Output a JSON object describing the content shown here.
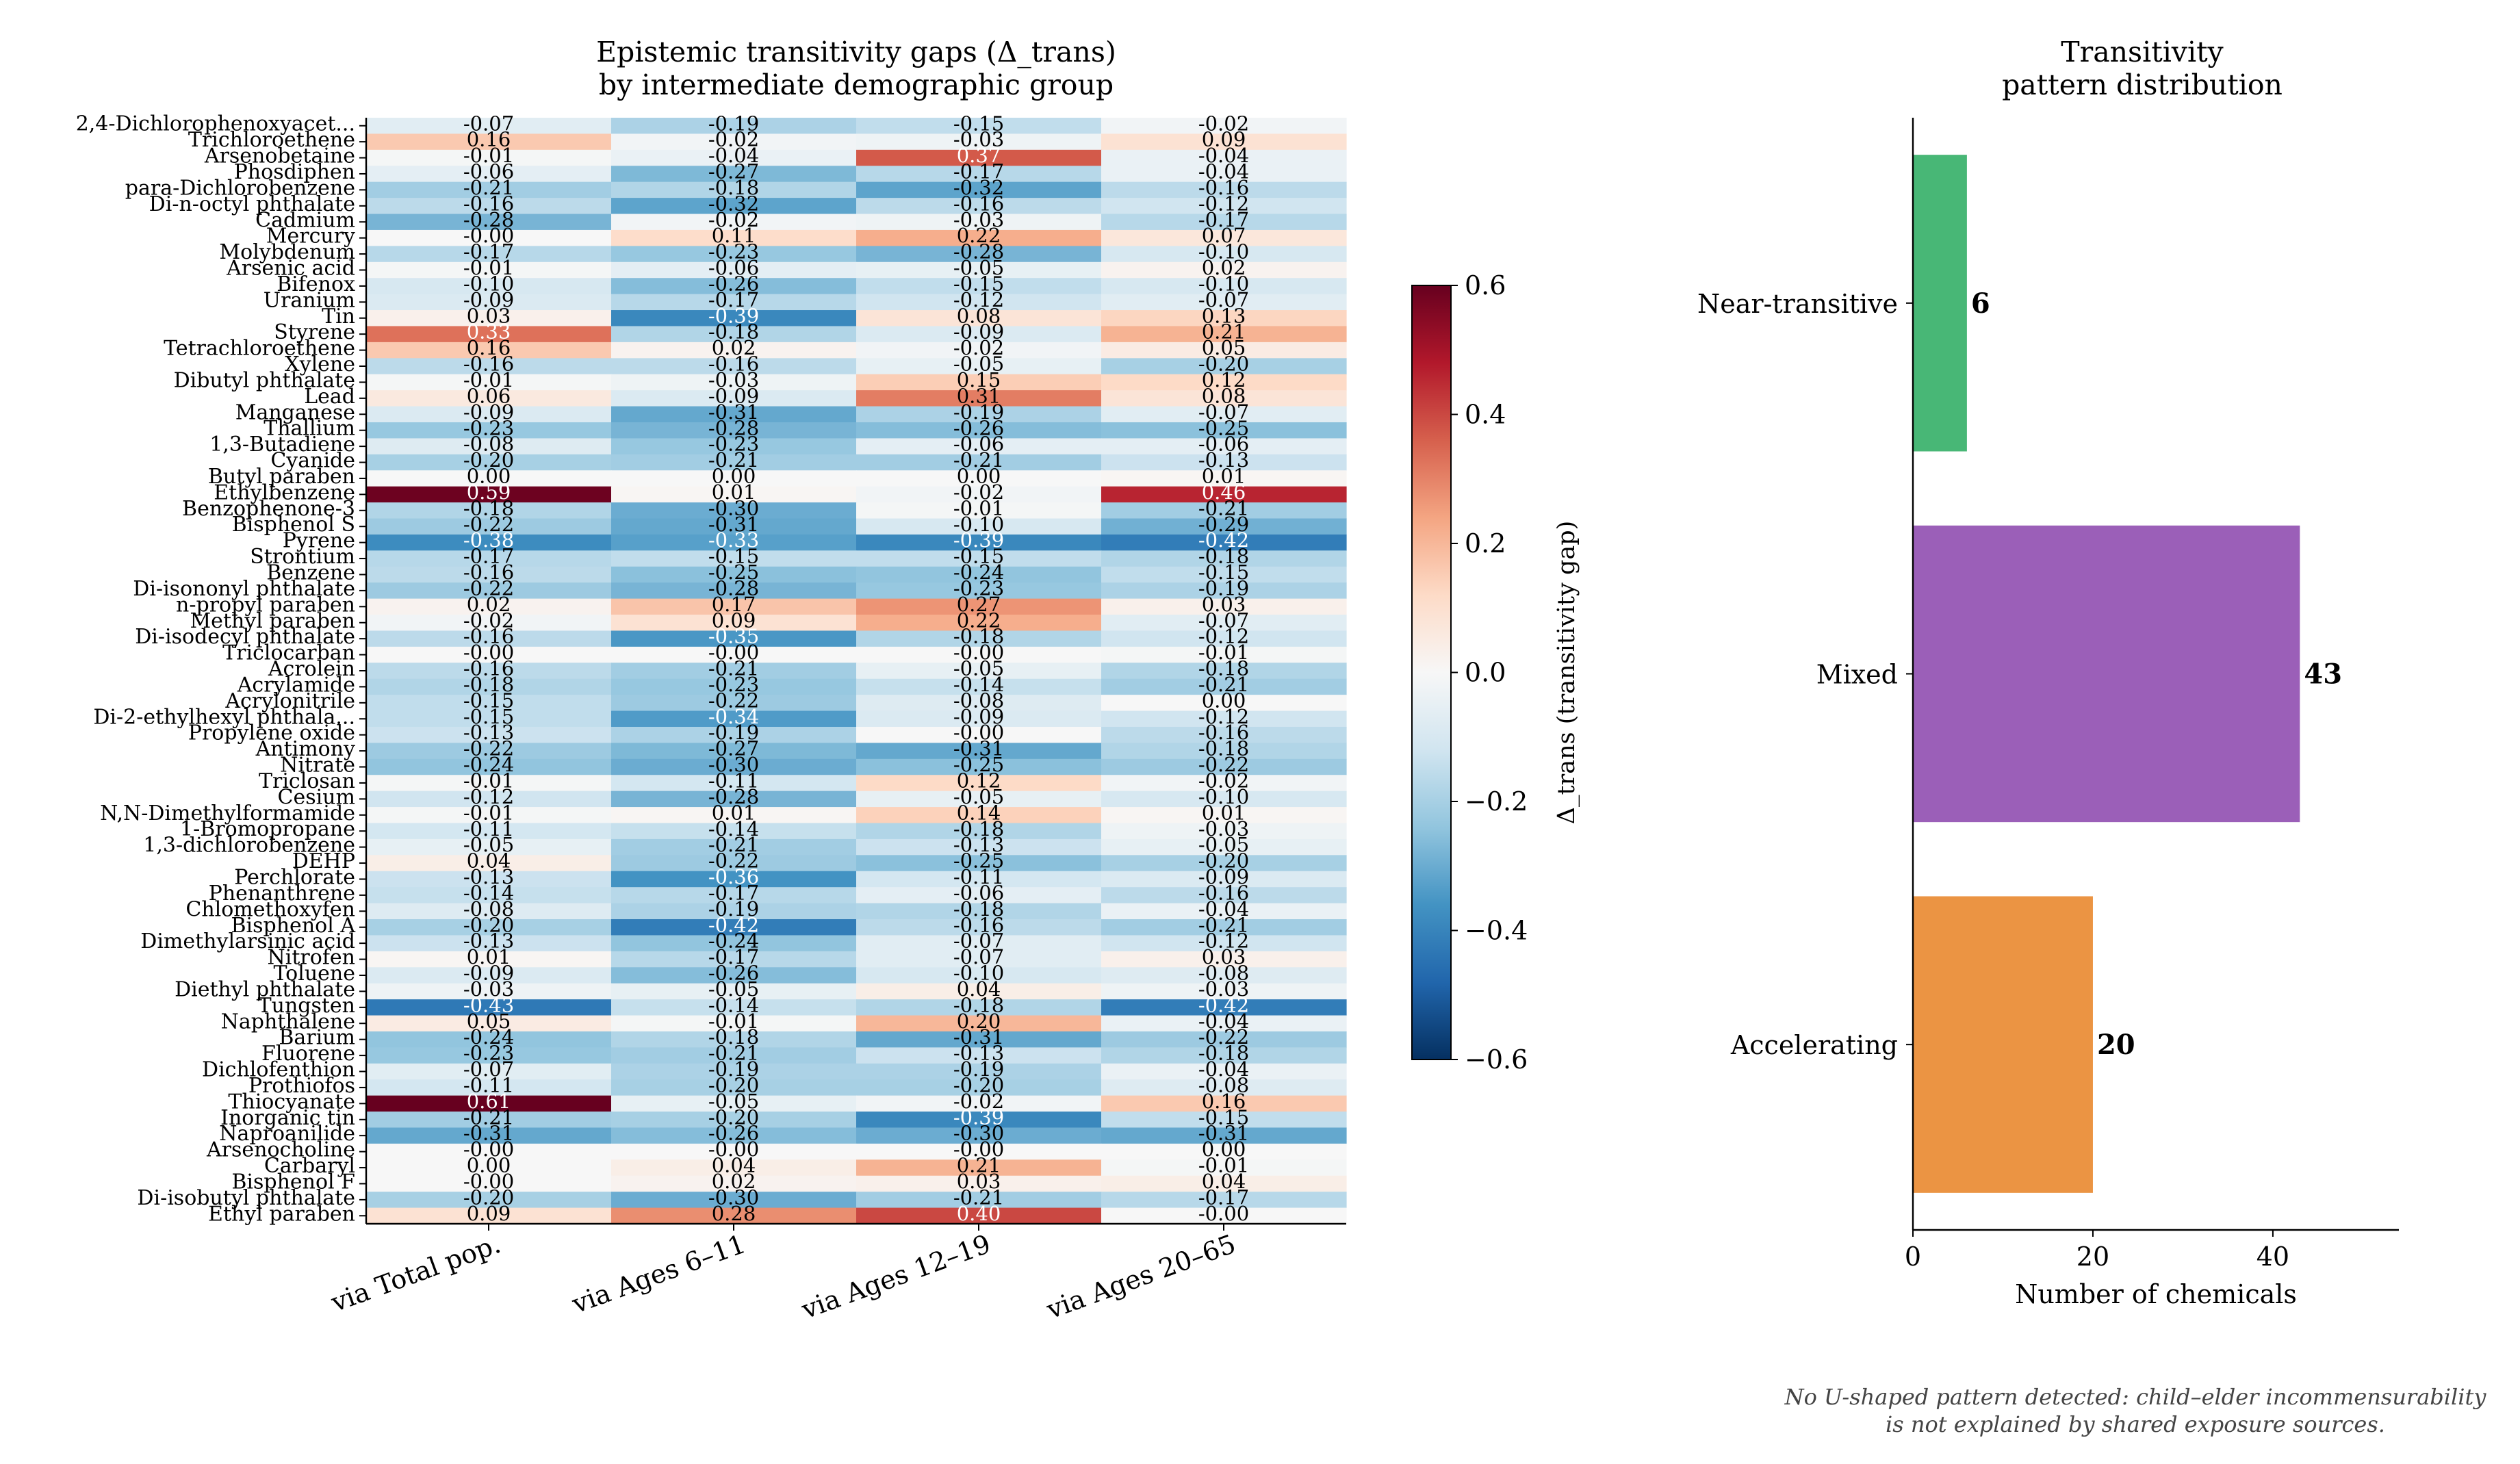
{
  "chart_data": [
    {
      "type": "heatmap",
      "title": "Epistemic transitivity gaps (Δ_trans)\nby intermediate demographic group",
      "columns": [
        "via Total pop.",
        "via Ages 6–11",
        "via Ages 12–19",
        "via Ages 20–65"
      ],
      "rows": [
        {
          "label": "2,4-Dichlorophenoxyacet...",
          "values": [
            -0.07,
            -0.19,
            -0.15,
            -0.02
          ]
        },
        {
          "label": "Trichloroethene",
          "values": [
            0.16,
            -0.02,
            -0.03,
            0.09
          ]
        },
        {
          "label": "Arsenobetaine",
          "values": [
            -0.01,
            -0.04,
            0.37,
            -0.04
          ]
        },
        {
          "label": "Phosdiphen",
          "values": [
            -0.06,
            -0.27,
            -0.17,
            -0.04
          ]
        },
        {
          "label": "para-Dichlorobenzene",
          "values": [
            -0.21,
            -0.18,
            -0.32,
            -0.16
          ]
        },
        {
          "label": "Di-n-octyl phthalate",
          "values": [
            -0.16,
            -0.32,
            -0.16,
            -0.12
          ]
        },
        {
          "label": "Cadmium",
          "values": [
            -0.28,
            -0.02,
            -0.03,
            -0.17
          ]
        },
        {
          "label": "Mercury",
          "values": [
            -0.0,
            0.11,
            0.22,
            0.07
          ]
        },
        {
          "label": "Molybdenum",
          "values": [
            -0.17,
            -0.23,
            -0.28,
            -0.1
          ]
        },
        {
          "label": "Arsenic acid",
          "values": [
            -0.01,
            -0.06,
            -0.05,
            0.02
          ]
        },
        {
          "label": "Bifenox",
          "values": [
            -0.1,
            -0.26,
            -0.15,
            -0.1
          ]
        },
        {
          "label": "Uranium",
          "values": [
            -0.09,
            -0.17,
            -0.12,
            -0.07
          ]
        },
        {
          "label": "Tin",
          "values": [
            0.03,
            -0.39,
            0.08,
            0.13
          ]
        },
        {
          "label": "Styrene",
          "values": [
            0.33,
            -0.18,
            -0.09,
            0.21
          ]
        },
        {
          "label": "Tetrachloroethene",
          "values": [
            0.16,
            0.02,
            -0.02,
            0.05
          ]
        },
        {
          "label": "Xylene",
          "values": [
            -0.16,
            -0.16,
            -0.05,
            -0.2
          ]
        },
        {
          "label": "Dibutyl phthalate",
          "values": [
            -0.01,
            -0.03,
            0.15,
            0.12
          ]
        },
        {
          "label": "Lead",
          "values": [
            0.06,
            -0.09,
            0.31,
            0.08
          ]
        },
        {
          "label": "Manganese",
          "values": [
            -0.09,
            -0.31,
            -0.19,
            -0.07
          ]
        },
        {
          "label": "Thallium",
          "values": [
            -0.23,
            -0.28,
            -0.26,
            -0.25
          ]
        },
        {
          "label": "1,3-Butadiene",
          "values": [
            -0.08,
            -0.23,
            -0.06,
            -0.06
          ]
        },
        {
          "label": "Cyanide",
          "values": [
            -0.2,
            -0.21,
            -0.21,
            -0.13
          ]
        },
        {
          "label": "Butyl paraben",
          "values": [
            0.0,
            0.0,
            0.0,
            0.01
          ]
        },
        {
          "label": "Ethylbenzene",
          "values": [
            0.59,
            0.01,
            -0.02,
            0.46
          ]
        },
        {
          "label": "Benzophenone-3",
          "values": [
            -0.18,
            -0.3,
            -0.01,
            -0.21
          ]
        },
        {
          "label": "Bisphenol S",
          "values": [
            -0.22,
            -0.31,
            -0.1,
            -0.29
          ]
        },
        {
          "label": "Pyrene",
          "values": [
            -0.38,
            -0.33,
            -0.39,
            -0.42
          ]
        },
        {
          "label": "Strontium",
          "values": [
            -0.17,
            -0.15,
            -0.15,
            -0.18
          ]
        },
        {
          "label": "Benzene",
          "values": [
            -0.16,
            -0.25,
            -0.24,
            -0.15
          ]
        },
        {
          "label": "Di-isononyl phthalate",
          "values": [
            -0.22,
            -0.28,
            -0.23,
            -0.19
          ]
        },
        {
          "label": "n-propyl paraben",
          "values": [
            0.02,
            0.17,
            0.27,
            0.03
          ]
        },
        {
          "label": "Methyl paraben",
          "values": [
            -0.02,
            0.09,
            0.22,
            -0.07
          ]
        },
        {
          "label": "Di-isodecyl phthalate",
          "values": [
            -0.16,
            -0.35,
            -0.18,
            -0.12
          ]
        },
        {
          "label": "Triclocarban",
          "values": [
            -0.0,
            -0.0,
            -0.0,
            -0.01
          ]
        },
        {
          "label": "Acrolein",
          "values": [
            -0.16,
            -0.21,
            -0.05,
            -0.18
          ]
        },
        {
          "label": "Acrylamide",
          "values": [
            -0.18,
            -0.23,
            -0.14,
            -0.21
          ]
        },
        {
          "label": "Acrylonitrile",
          "values": [
            -0.15,
            -0.22,
            -0.08,
            0.0
          ]
        },
        {
          "label": "Di-2-ethylhexyl phthala...",
          "values": [
            -0.15,
            -0.34,
            -0.09,
            -0.12
          ]
        },
        {
          "label": "Propylene oxide",
          "values": [
            -0.13,
            -0.19,
            -0.0,
            -0.16
          ]
        },
        {
          "label": "Antimony",
          "values": [
            -0.22,
            -0.27,
            -0.31,
            -0.18
          ]
        },
        {
          "label": "Nitrate",
          "values": [
            -0.24,
            -0.3,
            -0.25,
            -0.22
          ]
        },
        {
          "label": "Triclosan",
          "values": [
            -0.01,
            -0.11,
            0.12,
            -0.02
          ]
        },
        {
          "label": "Cesium",
          "values": [
            -0.12,
            -0.28,
            -0.05,
            -0.1
          ]
        },
        {
          "label": "N,N-Dimethylformamide",
          "values": [
            -0.01,
            0.01,
            0.14,
            0.01
          ]
        },
        {
          "label": "1-Bromopropane",
          "values": [
            -0.11,
            -0.14,
            -0.18,
            -0.03
          ]
        },
        {
          "label": "1,3-dichlorobenzene",
          "values": [
            -0.05,
            -0.21,
            -0.13,
            -0.05
          ]
        },
        {
          "label": "DEHP",
          "values": [
            0.04,
            -0.22,
            -0.25,
            -0.2
          ]
        },
        {
          "label": "Perchlorate",
          "values": [
            -0.13,
            -0.36,
            -0.11,
            -0.09
          ]
        },
        {
          "label": "Phenanthrene",
          "values": [
            -0.14,
            -0.17,
            -0.06,
            -0.16
          ]
        },
        {
          "label": "Chlomethoxyfen",
          "values": [
            -0.08,
            -0.19,
            -0.18,
            -0.04
          ]
        },
        {
          "label": "Bisphenol A",
          "values": [
            -0.2,
            -0.42,
            -0.16,
            -0.21
          ]
        },
        {
          "label": "Dimethylarsinic acid",
          "values": [
            -0.13,
            -0.24,
            -0.07,
            -0.12
          ]
        },
        {
          "label": "Nitrofen",
          "values": [
            0.01,
            -0.17,
            -0.07,
            0.03
          ]
        },
        {
          "label": "Toluene",
          "values": [
            -0.09,
            -0.26,
            -0.1,
            -0.08
          ]
        },
        {
          "label": "Diethyl phthalate",
          "values": [
            -0.03,
            -0.05,
            0.04,
            -0.03
          ]
        },
        {
          "label": "Tungsten",
          "values": [
            -0.43,
            -0.14,
            -0.18,
            -0.42
          ]
        },
        {
          "label": "Naphthalene",
          "values": [
            0.05,
            -0.01,
            0.2,
            -0.04
          ]
        },
        {
          "label": "Barium",
          "values": [
            -0.24,
            -0.18,
            -0.31,
            -0.22
          ]
        },
        {
          "label": "Fluorene",
          "values": [
            -0.23,
            -0.21,
            -0.13,
            -0.18
          ]
        },
        {
          "label": "Dichlofenthion",
          "values": [
            -0.07,
            -0.19,
            -0.19,
            -0.04
          ]
        },
        {
          "label": "Prothiofos",
          "values": [
            -0.11,
            -0.2,
            -0.2,
            -0.08
          ]
        },
        {
          "label": "Thiocyanate",
          "values": [
            0.61,
            -0.05,
            -0.02,
            0.16
          ]
        },
        {
          "label": "Inorganic tin",
          "values": [
            -0.21,
            -0.2,
            -0.39,
            -0.15
          ]
        },
        {
          "label": "Naproanilide",
          "values": [
            -0.31,
            -0.26,
            -0.3,
            -0.31
          ]
        },
        {
          "label": "Arsenocholine",
          "values": [
            -0.0,
            -0.0,
            -0.0,
            0.0
          ]
        },
        {
          "label": "Carbaryl",
          "values": [
            0.0,
            0.04,
            0.21,
            -0.01
          ]
        },
        {
          "label": "Bisphenol F",
          "values": [
            -0.0,
            0.02,
            0.03,
            0.04
          ]
        },
        {
          "label": "Di-isobutyl phthalate",
          "values": [
            -0.2,
            -0.3,
            -0.21,
            -0.17
          ]
        },
        {
          "label": "Ethyl paraben",
          "values": [
            0.09,
            0.28,
            0.4,
            -0.0
          ]
        }
      ],
      "colormap": "RdBu_r",
      "vmin": -0.6,
      "vmax": 0.6,
      "colorbar": {
        "label": "Δ_trans (transitivity gap)",
        "ticks": [
          0.6,
          0.4,
          0.2,
          0.0,
          -0.2,
          -0.4,
          -0.6
        ],
        "tick_labels": [
          "0.6",
          "0.4",
          "0.2",
          "0.0",
          "−0.2",
          "−0.4",
          "−0.6"
        ]
      }
    },
    {
      "type": "bar",
      "orientation": "horizontal",
      "title": "Transitivity\npattern distribution",
      "categories": [
        "Near-transitive",
        "Mixed",
        "Accelerating"
      ],
      "values": [
        6,
        43,
        20
      ],
      "colors": [
        "#48b776",
        "#9b5fb8",
        "#eb9443"
      ],
      "xlabel": "Number of chemicals",
      "xlim": [
        0,
        54
      ],
      "xticks": [
        0,
        20,
        40
      ]
    }
  ],
  "footnote": "No U-shaped pattern detected: child–elder incommensurability\nis not explained by shared exposure sources."
}
